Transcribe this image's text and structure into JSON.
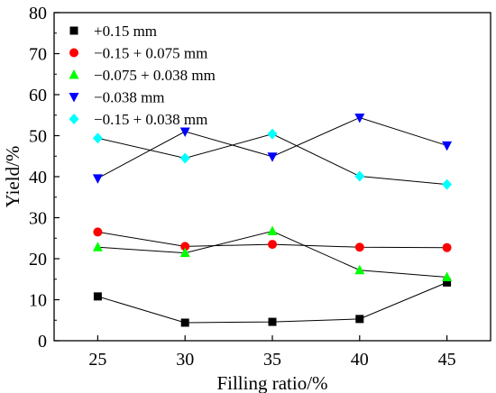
{
  "chart_data": {
    "type": "line",
    "title": "",
    "xlabel": "Filling ratio/%",
    "ylabel": "Yield/%",
    "x": [
      25,
      30,
      35,
      40,
      45
    ],
    "xlim": [
      22.5,
      47.5
    ],
    "ylim": [
      0,
      80
    ],
    "xticks": [
      25,
      30,
      35,
      40,
      45
    ],
    "yticks": [
      0,
      10,
      20,
      30,
      40,
      50,
      60,
      70,
      80
    ],
    "grid": false,
    "legend_position": "top-left",
    "series": [
      {
        "name": "+0.15 mm",
        "marker": "square",
        "color": "#000000",
        "values": [
          10.8,
          4.4,
          4.6,
          5.3,
          14.2
        ]
      },
      {
        "name": "−0.15 + 0.075 mm",
        "marker": "circle",
        "color": "#ff0000",
        "values": [
          26.5,
          23.0,
          23.5,
          22.8,
          22.7
        ]
      },
      {
        "name": "−0.075 + 0.038 mm",
        "marker": "triangle-up",
        "color": "#00ff00",
        "values": [
          22.8,
          21.4,
          26.7,
          17.2,
          15.5
        ]
      },
      {
        "name": "−0.038 mm",
        "marker": "triangle-down",
        "color": "#0000ff",
        "values": [
          39.6,
          51.0,
          44.9,
          54.4,
          47.6
        ]
      },
      {
        "name": "−0.15 + 0.038 mm",
        "marker": "diamond",
        "color": "#00ffff",
        "values": [
          49.4,
          44.5,
          50.4,
          40.1,
          38.1
        ]
      }
    ]
  }
}
